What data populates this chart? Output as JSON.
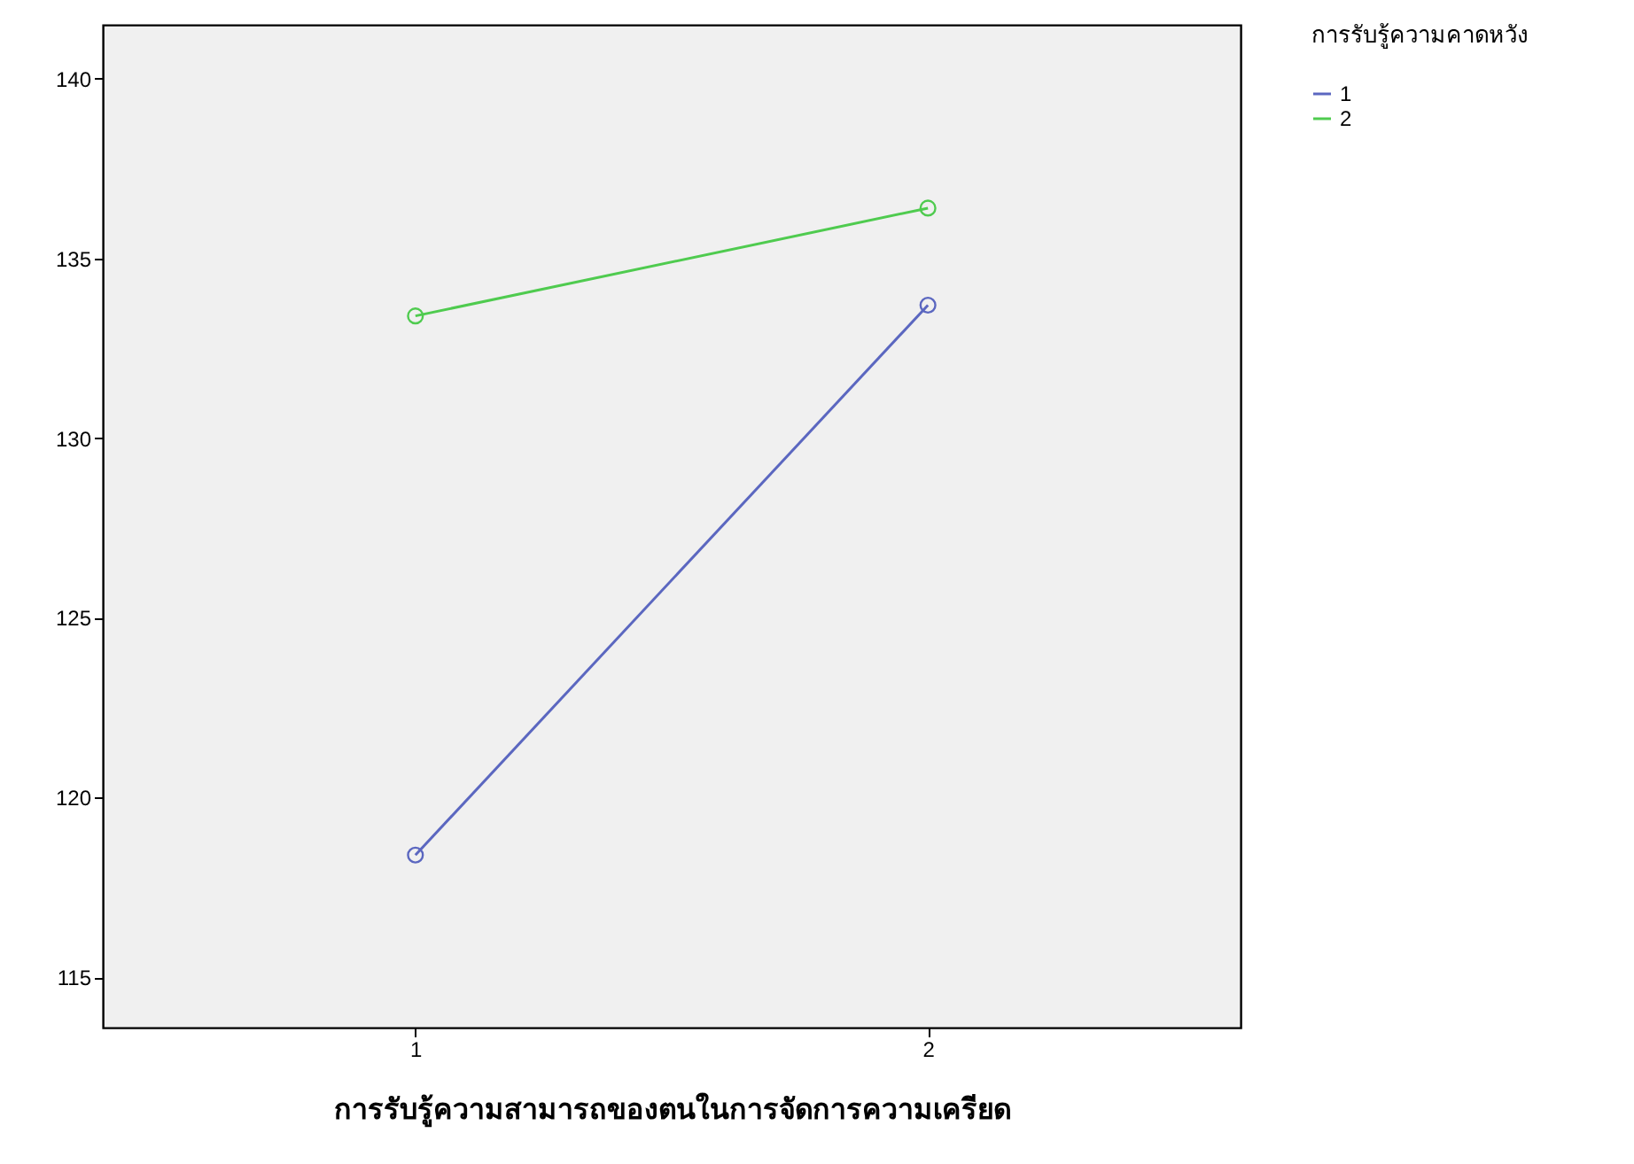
{
  "chart_data": {
    "type": "line",
    "xlabel": "การรับรู้ความสามารถของตนในการจัดการความเครียด",
    "legend_title": "การรับรู้ความคาดหวัง",
    "categories": [
      "1",
      "2"
    ],
    "series": [
      {
        "name": "1",
        "color": "#5b67c0",
        "values": [
          118.4,
          133.7
        ]
      },
      {
        "name": "2",
        "color": "#4fcb4f",
        "values": [
          133.4,
          136.4
        ]
      }
    ],
    "ylim": [
      113.6,
      141.5
    ],
    "yticks": [
      115,
      120,
      125,
      130,
      135,
      140
    ],
    "grid": false,
    "legend": "top right",
    "marker": "circle",
    "line_style": "solid"
  }
}
